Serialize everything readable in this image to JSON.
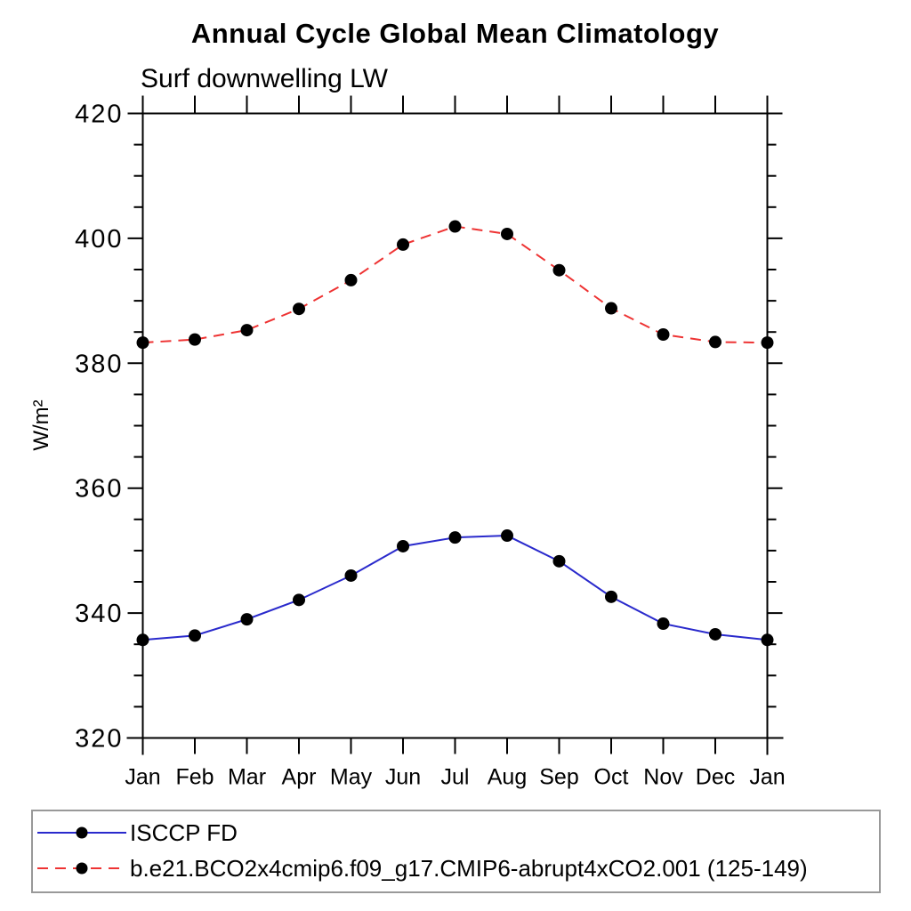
{
  "chart_data": {
    "type": "line",
    "title": "Annual Cycle Global Mean Climatology",
    "subtitle": "Surf downwelling LW",
    "ylabel": "W/m²",
    "x_categories": [
      "Jan",
      "Feb",
      "Mar",
      "Apr",
      "May",
      "Jun",
      "Jul",
      "Aug",
      "Sep",
      "Oct",
      "Nov",
      "Dec",
      "Jan"
    ],
    "ylim": [
      320,
      420
    ],
    "ytick_major": [
      320,
      340,
      360,
      380,
      400,
      420
    ],
    "ytick_minor_step": 5,
    "grid": false,
    "legend_position": "bottom-box",
    "axis_color": "#000000",
    "marker": "filled-circle",
    "marker_color": "#000000",
    "series": [
      {
        "name": "ISCCP FD",
        "color": "#2a2acc",
        "style": "solid",
        "values": [
          335.7,
          336.4,
          339.0,
          342.1,
          346.0,
          350.7,
          352.1,
          352.4,
          348.3,
          342.6,
          338.3,
          336.6,
          335.7
        ]
      },
      {
        "name": "b.e21.BCO2x4cmip6.f09_g17.CMIP6-abrupt4xCO2.001 (125-149)",
        "color": "#ee3333",
        "style": "dashed",
        "values": [
          383.3,
          383.8,
          385.3,
          388.7,
          393.3,
          399.0,
          401.9,
          400.7,
          394.9,
          388.8,
          384.6,
          383.4,
          383.3
        ]
      }
    ]
  }
}
